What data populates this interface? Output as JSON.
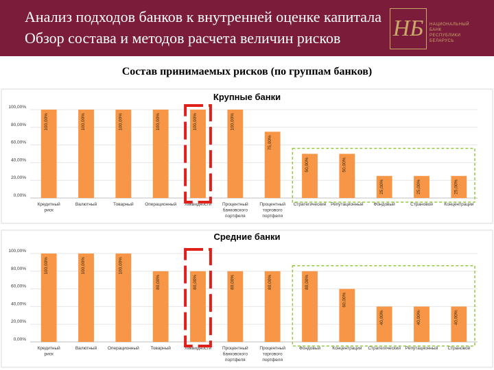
{
  "header": {
    "title_line1": "Анализ подходов банков к внутренней оценке капитала",
    "title_line2": "Обзор состава и методов расчета величин рисков",
    "logo_mono": "НБ",
    "logo_text": [
      "НАЦИОНАЛЬНЫЙ",
      "БАНК",
      "РЕСПУБЛИКИ",
      "БЕЛАРУСЬ"
    ]
  },
  "subtitle": "Состав принимаемых рисков (по группам банков)",
  "colors": {
    "header_bg": "#7b1d3a",
    "bar": "#f79646",
    "red_box": "#e0201a",
    "green_box": "#92c83e"
  },
  "chart_data": [
    {
      "type": "bar",
      "title": "Крупные банки",
      "ylim": [
        0,
        100
      ],
      "yticks": [
        "0,00%",
        "20,00%",
        "40,00%",
        "60,00%",
        "80,00%",
        "100,00%"
      ],
      "categories": [
        [
          "Кредитный",
          "риск"
        ],
        [
          "Валютный"
        ],
        [
          "Товарный"
        ],
        [
          "Операционный"
        ],
        [
          "Ликвидности"
        ],
        [
          "Процентный",
          "банковского",
          "портфеля"
        ],
        [
          "Процентный",
          "торгового",
          "портфеля"
        ],
        [
          "Стратегический"
        ],
        [
          "Репутационный"
        ],
        [
          "Фондовый"
        ],
        [
          "Страновой"
        ],
        [
          "Концентрации"
        ]
      ],
      "values": [
        100,
        100,
        100,
        100,
        100,
        100,
        75,
        50,
        50,
        25,
        25,
        25
      ],
      "value_labels": [
        "100,00%",
        "100,00%",
        "100,00%",
        "100,00%",
        "100,00%",
        "100,00%",
        "75,00%",
        "50,00%",
        "50,00%",
        "25,00%",
        "25,00%",
        "25,00%"
      ],
      "highlight_red": [
        4
      ],
      "highlight_green": [
        7,
        11
      ]
    },
    {
      "type": "bar",
      "title": "Средние банки",
      "ylim": [
        0,
        100
      ],
      "yticks": [
        "0,00%",
        "20,00%",
        "40,00%",
        "60,00%",
        "80,00%",
        "100,00%"
      ],
      "categories": [
        [
          "Кредитный",
          "риск"
        ],
        [
          "Валютный"
        ],
        [
          "Операционный"
        ],
        [
          "Товарный"
        ],
        [
          "Ликвидности"
        ],
        [
          "Процентный",
          "банковского",
          "портфеля"
        ],
        [
          "Процентный",
          "торгового",
          "портфеля"
        ],
        [
          "Фондовый"
        ],
        [
          "Концентрации"
        ],
        [
          "Стратегический"
        ],
        [
          "Репутационный"
        ],
        [
          "Страновой"
        ]
      ],
      "values": [
        100,
        100,
        100,
        80,
        80,
        80,
        80,
        80,
        60,
        40,
        40,
        40
      ],
      "value_labels": [
        "100,00%",
        "100,00%",
        "100,00%",
        "80,00%",
        "80,00%",
        "80,00%",
        "80,00%",
        "80,00%",
        "60,00%",
        "40,00%",
        "40,00%",
        "40,00%"
      ],
      "highlight_red": [
        4
      ],
      "highlight_green": [
        7,
        11
      ]
    }
  ]
}
